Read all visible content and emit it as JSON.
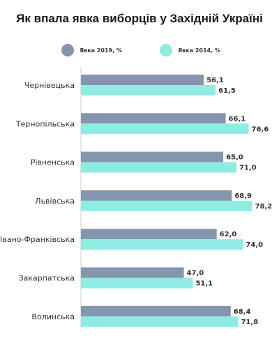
{
  "chart_data": {
    "type": "bar",
    "orientation": "horizontal",
    "title": "Як впала явка виборців у Західній Україні",
    "categories": [
      "Чернівецька",
      "Тернопільська",
      "Рівненська",
      "Львівська",
      "Івано-Франківська",
      "Закарпатська",
      "Волинська"
    ],
    "series": [
      {
        "name": "Явка 2019, %",
        "color": "#8496ad",
        "values": [
          56.1,
          66.1,
          65.0,
          68.9,
          62.0,
          47.0,
          68.4
        ],
        "labels": [
          "56,1",
          "66,1",
          "65,0",
          "68,9",
          "62,0",
          "47,0",
          "68,4"
        ]
      },
      {
        "name": "Явка 2014, %",
        "color": "#8eece3",
        "values": [
          61.5,
          76.6,
          71.0,
          78.2,
          74.0,
          51.1,
          71.8
        ],
        "labels": [
          "61,5",
          "76,6",
          "71,0",
          "78,2",
          "74,0",
          "51,1",
          "71,8"
        ]
      }
    ],
    "xlim": [
      0,
      100
    ],
    "grid": false,
    "legend": "top"
  },
  "colors": {
    "axis": "#cccccc",
    "text": "#333333"
  }
}
